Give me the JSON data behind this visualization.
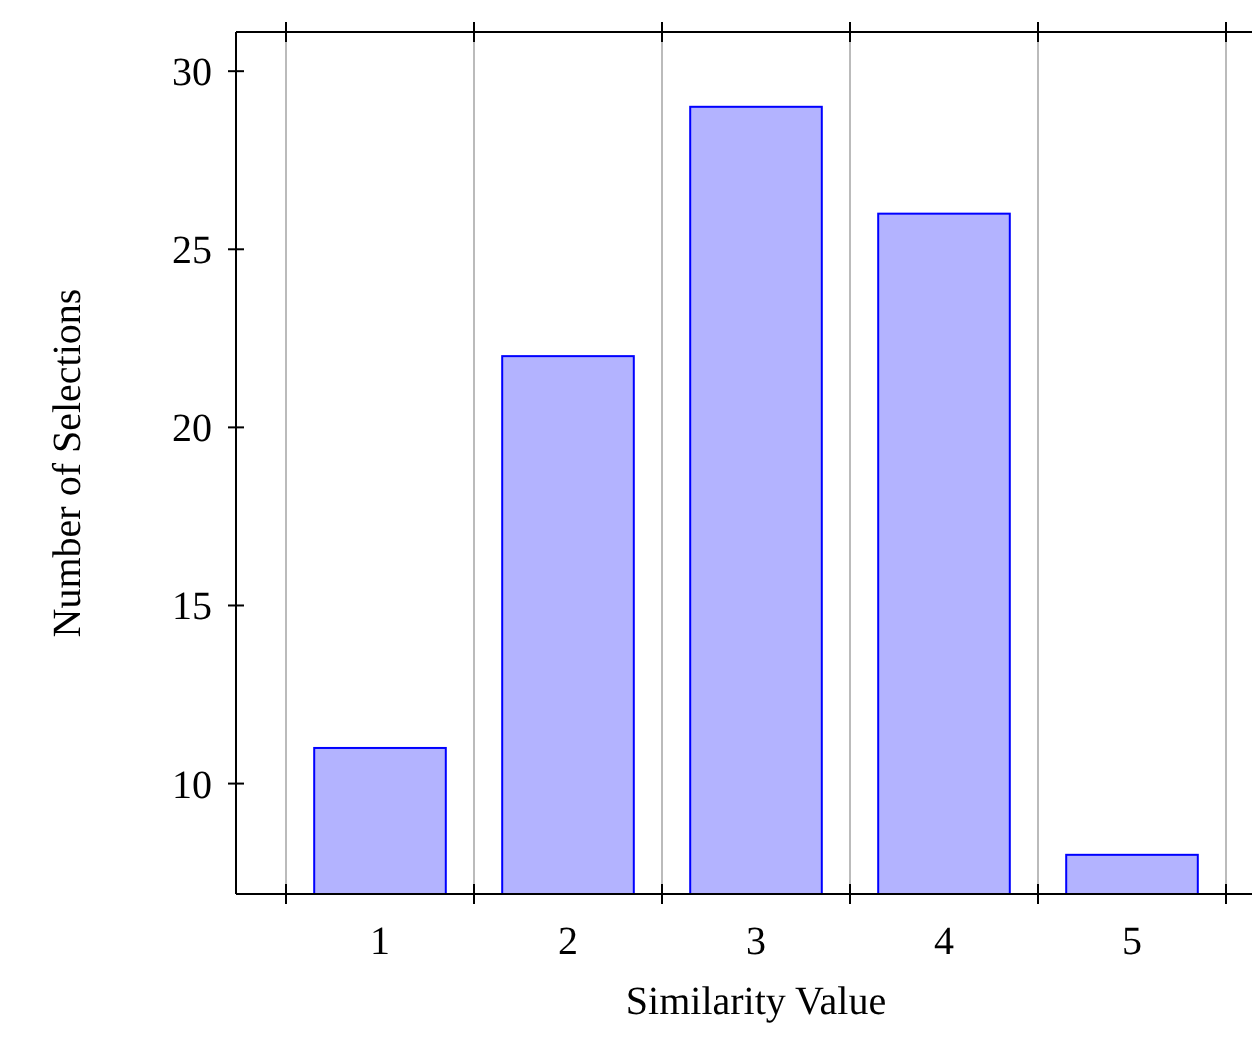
{
  "chart_data": {
    "type": "bar",
    "xlabel": "Similarity Value",
    "ylabel": "Number of Selections",
    "categories": [
      "1",
      "2",
      "3",
      "4",
      "5"
    ],
    "series": [
      {
        "color": "#b3b3ff",
        "values": [
          11,
          22,
          29,
          26,
          8
        ]
      }
    ],
    "ylim": [
      6.9,
      31.1
    ],
    "yticks": [
      10,
      15,
      20,
      25,
      30
    ],
    "grid": "x"
  }
}
